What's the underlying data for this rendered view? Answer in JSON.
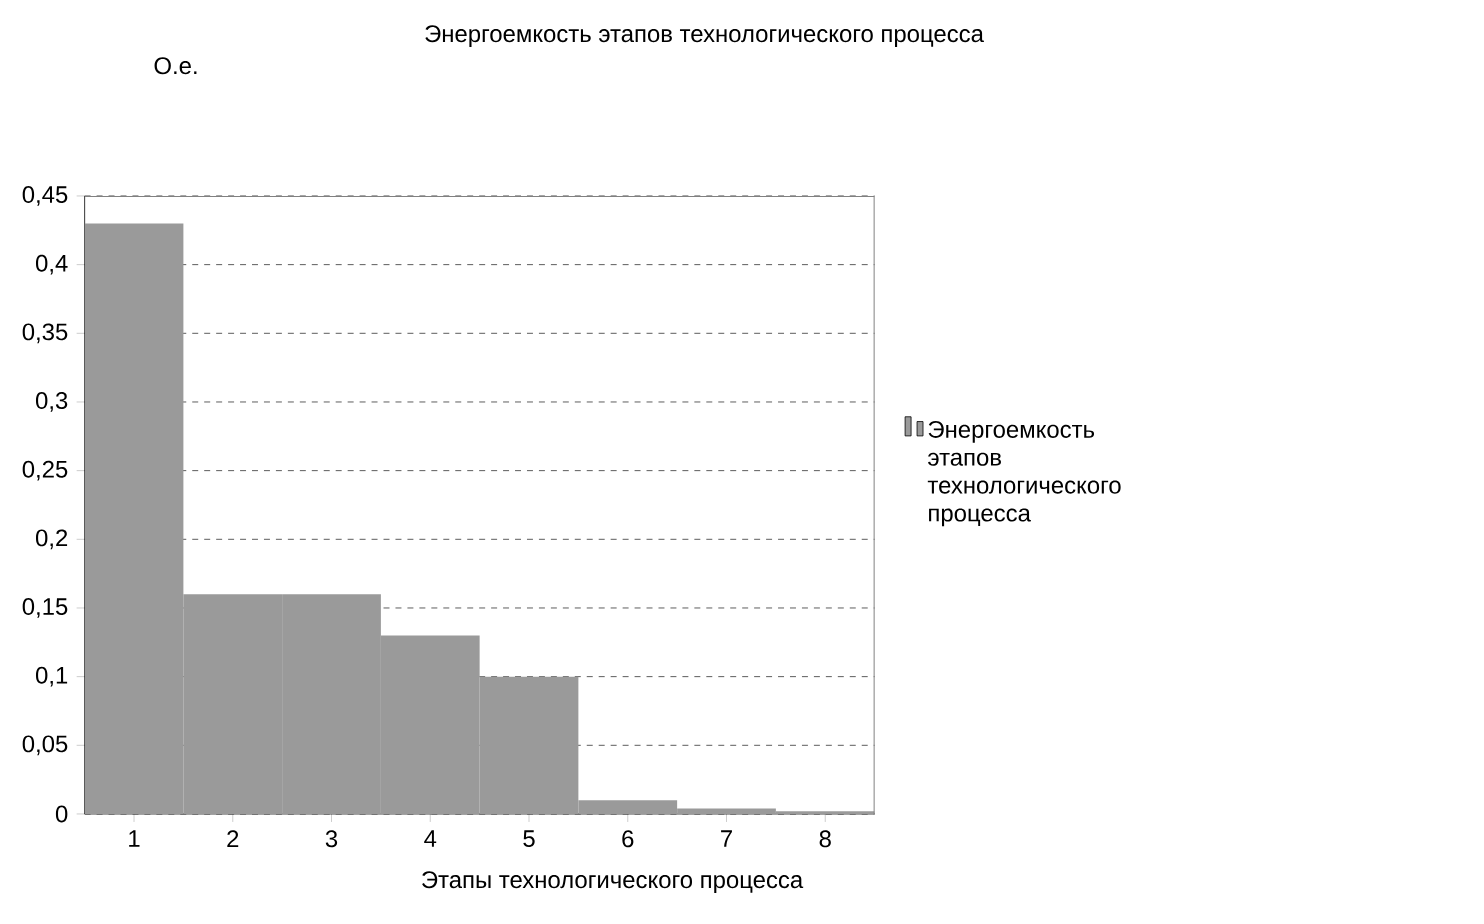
{
  "chart_data": {
    "type": "bar",
    "title": "Энергоемкость этапов технологического процесса",
    "xlabel": "Этапы технологического процесса",
    "ylabel": "О.е.",
    "categories": [
      "1",
      "2",
      "3",
      "4",
      "5",
      "6",
      "7",
      "8"
    ],
    "series": [
      {
        "name": "Энергоемкость этапов технологического процесса",
        "color": "#9a9a9a",
        "values": [
          0.43,
          0.16,
          0.16,
          0.13,
          0.1,
          0.01,
          0.004,
          0.002
        ]
      }
    ],
    "ylim": [
      0,
      0.45
    ],
    "yticks": [
      {
        "value": 0,
        "label": "0"
      },
      {
        "value": 0.05,
        "label": "0,05"
      },
      {
        "value": 0.1,
        "label": "0,1"
      },
      {
        "value": 0.15,
        "label": "0,15"
      },
      {
        "value": 0.2,
        "label": "0,2"
      },
      {
        "value": 0.25,
        "label": "0,25"
      },
      {
        "value": 0.3,
        "label": "0,3"
      },
      {
        "value": 0.35,
        "label": "0,35"
      },
      {
        "value": 0.4,
        "label": "0,4"
      },
      {
        "value": 0.45,
        "label": "0,45"
      }
    ],
    "grid": "y",
    "legend": "right"
  }
}
